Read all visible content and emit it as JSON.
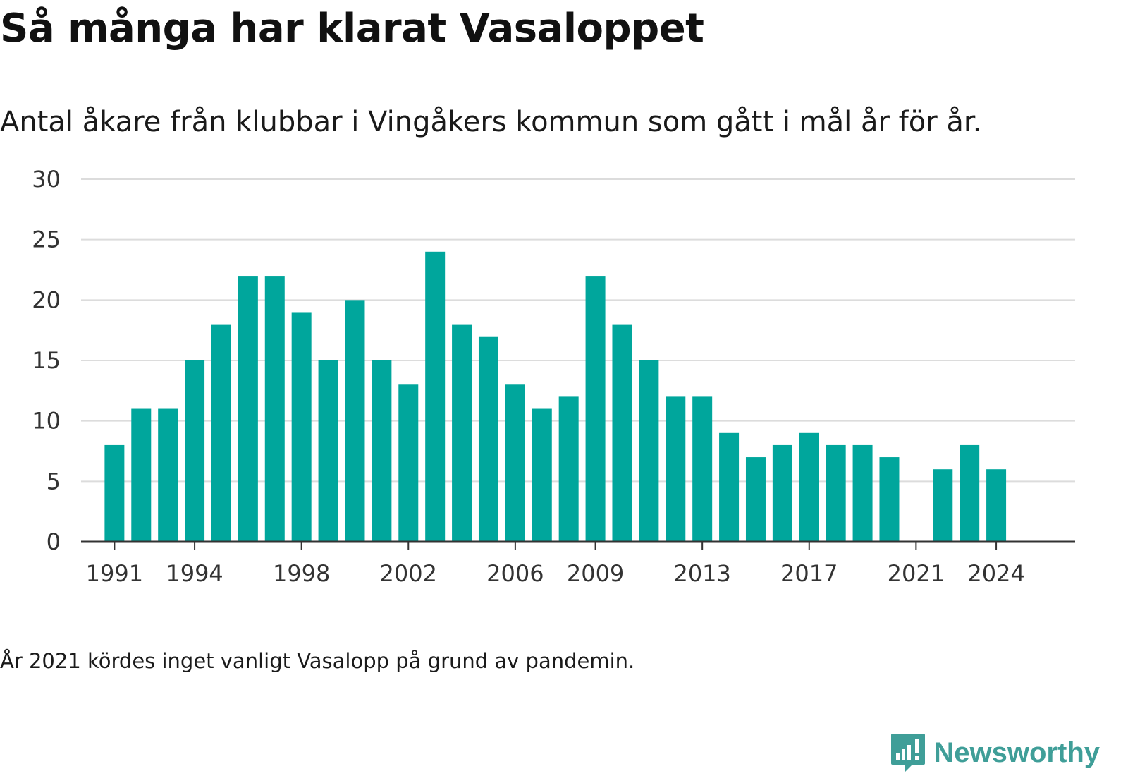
{
  "chart_data": {
    "type": "bar",
    "title": "Så många har klarat Vasaloppet",
    "subtitle": "Antal åkare från klubbar i Vingåkers kommun som gått i mål år för år.",
    "footnote": "År 2021 kördes inget vanligt Vasalopp på grund av pandemin.",
    "xlabel": "",
    "ylabel": "",
    "ylim": [
      0,
      30
    ],
    "yticks": [
      0,
      5,
      10,
      15,
      20,
      25,
      30
    ],
    "xticks": [
      1991,
      1994,
      1998,
      2002,
      2006,
      2009,
      2013,
      2017,
      2021,
      2024
    ],
    "grid": true,
    "color": "#00a69c",
    "x": [
      1991,
      1992,
      1993,
      1994,
      1995,
      1996,
      1997,
      1998,
      1999,
      2000,
      2001,
      2002,
      2003,
      2004,
      2005,
      2006,
      2007,
      2008,
      2009,
      2010,
      2011,
      2012,
      2013,
      2014,
      2015,
      2016,
      2017,
      2018,
      2019,
      2020,
      2021,
      2022,
      2023,
      2024
    ],
    "values": [
      8,
      11,
      11,
      15,
      18,
      22,
      22,
      19,
      15,
      20,
      15,
      13,
      24,
      18,
      17,
      13,
      11,
      12,
      22,
      18,
      15,
      12,
      12,
      9,
      7,
      8,
      9,
      8,
      8,
      7,
      0,
      6,
      8,
      6
    ]
  },
  "branding": {
    "name": "Newsworthy",
    "color": "#3f9e98",
    "icon": "bar-chart-speech-bubble-icon"
  }
}
